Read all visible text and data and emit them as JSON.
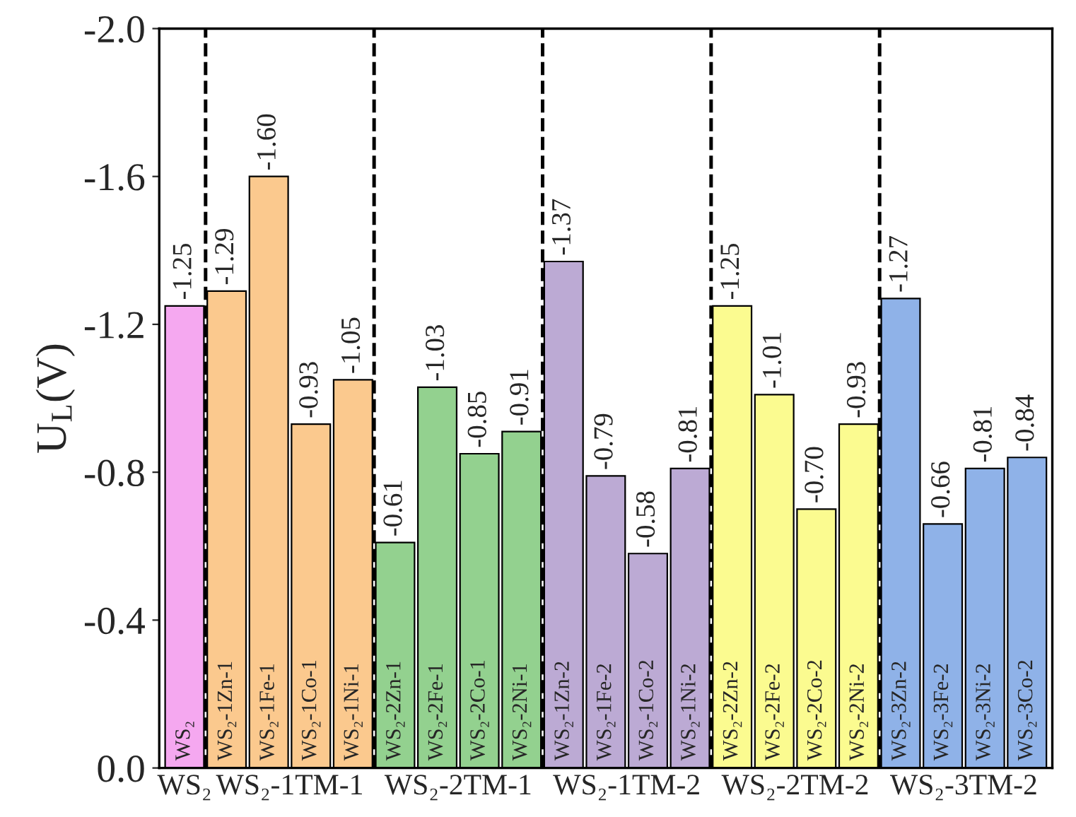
{
  "chart_data": {
    "type": "bar",
    "ylabel": "U$_{L}$(V)",
    "categories": [
      "WS₂",
      "WS₂-1Zn-1",
      "WS₂-1Fe-1",
      "WS₂-1Co-1",
      "WS₂-1Ni-1",
      "WS₂-2Zn-1",
      "WS₂-2Fe-1",
      "WS₂-2Co-1",
      "WS₂-2Ni-1",
      "WS₂-1Zn-2",
      "WS₂-1Fe-2",
      "WS₂-1Co-2",
      "WS₂-1Ni-2",
      "WS₂-2Zn-2",
      "WS₂-2Fe-2",
      "WS₂-2Co-2",
      "WS₂-2Ni-2",
      "WS₂-3Zn-2",
      "WS₂-3Fe-2",
      "WS₂-3Ni-2",
      "WS₂-3Co-2"
    ],
    "values": [
      -1.25,
      -1.29,
      -1.6,
      -0.93,
      -1.05,
      -0.61,
      -1.03,
      -0.85,
      -0.91,
      -1.37,
      -0.79,
      -0.58,
      -0.81,
      -1.25,
      -1.01,
      -0.7,
      -0.93,
      -1.27,
      -0.66,
      -0.81,
      -0.84
    ],
    "value_labels": [
      "-1.25",
      "-1.29",
      "-1.60",
      "-0.93",
      "-1.05",
      "-0.61",
      "-1.03",
      "-0.85",
      "-0.91",
      "-1.37",
      "-0.79",
      "-0.58",
      "-0.81",
      "-1.25",
      "-1.01",
      "-0.70",
      "-0.93",
      "-1.27",
      "-0.66",
      "-0.81",
      "-0.84"
    ],
    "colors": [
      "#f5a8f0",
      "#fbc98e",
      "#fbc98e",
      "#fbc98e",
      "#fbc98e",
      "#93d18f",
      "#93d18f",
      "#93d18f",
      "#93d18f",
      "#bcaad4",
      "#bcaad4",
      "#bcaad4",
      "#bcaad4",
      "#fbfb90",
      "#fbfb90",
      "#fbfb90",
      "#fbfb90",
      "#8fb2e8",
      "#8fb2e8",
      "#8fb2e8",
      "#8fb2e8"
    ],
    "ylim": [
      0.0,
      -2.0
    ],
    "yticks": [
      {
        "value": 0.0,
        "label": "0.0"
      },
      -0.4,
      -0.8,
      -1.2,
      -1.6,
      {
        "value": -2.0,
        "label": "-2.0"
      }
    ],
    "annotations": [
      "WS₂",
      "WS₂-1TM-1",
      "WS₂-2TM-1",
      "WS₂-1TM-2",
      "WS₂-2TM-2",
      "WS₂-3TM-2"
    ],
    "grid": false,
    "legend": false
  }
}
